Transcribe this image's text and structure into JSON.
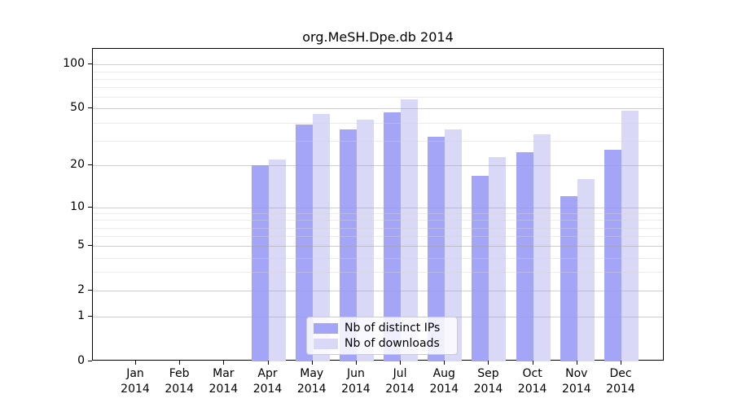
{
  "chart_data": {
    "type": "bar",
    "title": "org.MeSH.Dpe.db 2014",
    "categories": [
      "Jan",
      "Feb",
      "Mar",
      "Apr",
      "May",
      "Jun",
      "Jul",
      "Aug",
      "Sep",
      "Oct",
      "Nov",
      "Dec"
    ],
    "year_label": "2014",
    "series": [
      {
        "name": "Nb of distinct IPs",
        "color": "#a5a5f7",
        "values": [
          0,
          0,
          0,
          20,
          39,
          36,
          47,
          32,
          17,
          25,
          12,
          26
        ]
      },
      {
        "name": "Nb of downloads",
        "color": "#d9d9f7",
        "values": [
          0,
          0,
          0,
          22,
          46,
          42,
          58,
          36,
          23,
          33,
          16,
          48
        ]
      }
    ],
    "y_axis": {
      "scale": "log1p",
      "tick_values": [
        0,
        1,
        2,
        5,
        10,
        20,
        50,
        100
      ],
      "minor_tick_values": [
        3,
        4,
        6,
        7,
        8,
        9,
        30,
        40,
        60,
        70,
        80,
        90
      ],
      "max_value": 128
    },
    "xlabel": "",
    "ylabel": "",
    "grid": true,
    "legend_position": "lower center",
    "colors": {
      "bar_dark": "#a5a5f7",
      "bar_light": "#d9d9f7",
      "grid_major": "#cfcfcf",
      "grid_minor": "#ededed",
      "axis": "#000000"
    }
  }
}
